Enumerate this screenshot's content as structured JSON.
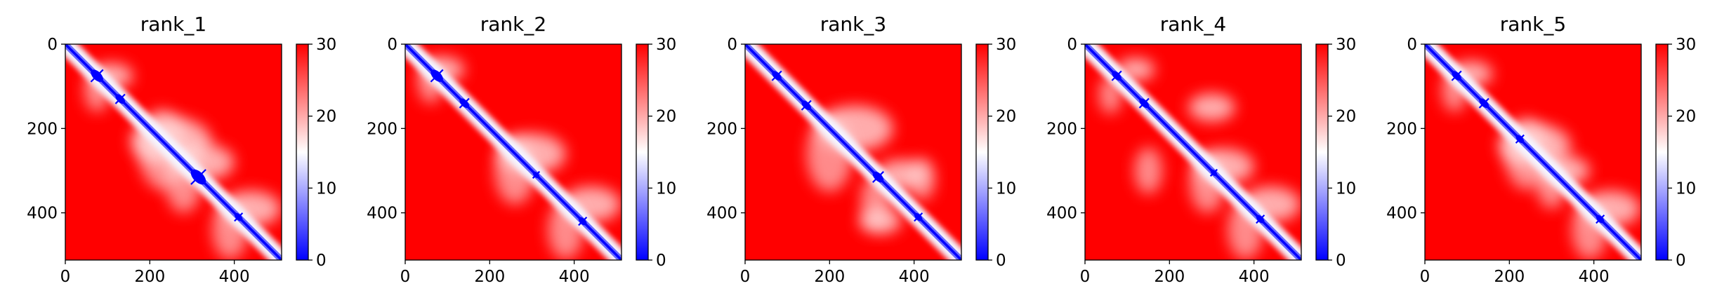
{
  "colors": {
    "low": "#0000ff",
    "mid": "#ffffff",
    "high": "#ff0000",
    "axis": "#000000"
  },
  "chart_data": [
    {
      "type": "heatmap",
      "title": "rank_1",
      "size": 512,
      "x_ticks": [
        "0",
        "200",
        "400"
      ],
      "y_ticks": [
        "0",
        "200",
        "400"
      ],
      "colorbar": {
        "min": 0,
        "max": 30,
        "ticks": [
          "0",
          "10",
          "20",
          "30"
        ]
      },
      "blue_spots": [
        {
          "x": 75,
          "y": 75,
          "r": 18
        },
        {
          "x": 315,
          "y": 315,
          "r": 22
        },
        {
          "x": 130,
          "y": 130,
          "r": 14
        },
        {
          "x": 410,
          "y": 410,
          "r": 12
        }
      ],
      "white_regions": [
        {
          "x": 110,
          "y": 75,
          "r": 50
        },
        {
          "x": 250,
          "y": 230,
          "r": 95
        },
        {
          "x": 330,
          "y": 280,
          "r": 70
        },
        {
          "x": 440,
          "y": 390,
          "r": 70
        }
      ]
    },
    {
      "type": "heatmap",
      "title": "rank_2",
      "size": 512,
      "x_ticks": [
        "0",
        "200",
        "400"
      ],
      "y_ticks": [
        "0",
        "200",
        "400"
      ],
      "colorbar": {
        "min": 0,
        "max": 30,
        "ticks": [
          "0",
          "10",
          "20",
          "30"
        ]
      },
      "blue_spots": [
        {
          "x": 75,
          "y": 75,
          "r": 18
        },
        {
          "x": 140,
          "y": 140,
          "r": 14
        },
        {
          "x": 310,
          "y": 310,
          "r": 10
        },
        {
          "x": 420,
          "y": 420,
          "r": 12
        }
      ],
      "white_regions": [
        {
          "x": 90,
          "y": 60,
          "r": 50
        },
        {
          "x": 300,
          "y": 260,
          "r": 80
        },
        {
          "x": 440,
          "y": 380,
          "r": 70
        }
      ]
    },
    {
      "type": "heatmap",
      "title": "rank_3",
      "size": 512,
      "x_ticks": [
        "0",
        "200",
        "400"
      ],
      "y_ticks": [
        "0",
        "200",
        "400"
      ],
      "colorbar": {
        "min": 0,
        "max": 30,
        "ticks": [
          "0",
          "10",
          "20",
          "30"
        ]
      },
      "blue_spots": [
        {
          "x": 75,
          "y": 75,
          "r": 14
        },
        {
          "x": 145,
          "y": 145,
          "r": 14
        },
        {
          "x": 315,
          "y": 315,
          "r": 16
        },
        {
          "x": 410,
          "y": 410,
          "r": 12
        }
      ],
      "white_regions": [
        {
          "x": 260,
          "y": 200,
          "r": 90
        },
        {
          "x": 370,
          "y": 310,
          "r": 60
        },
        {
          "x": 320,
          "y": 420,
          "r": 50
        }
      ]
    },
    {
      "type": "heatmap",
      "title": "rank_4",
      "size": 512,
      "x_ticks": [
        "0",
        "200",
        "400"
      ],
      "y_ticks": [
        "0",
        "200",
        "400"
      ],
      "colorbar": {
        "min": 0,
        "max": 30,
        "ticks": [
          "0",
          "10",
          "20",
          "30"
        ]
      },
      "blue_spots": [
        {
          "x": 75,
          "y": 75,
          "r": 14
        },
        {
          "x": 140,
          "y": 140,
          "r": 14
        },
        {
          "x": 305,
          "y": 305,
          "r": 10
        },
        {
          "x": 415,
          "y": 415,
          "r": 12
        }
      ],
      "white_regions": [
        {
          "x": 120,
          "y": 60,
          "r": 45
        },
        {
          "x": 300,
          "y": 150,
          "r": 55
        },
        {
          "x": 330,
          "y": 290,
          "r": 70
        },
        {
          "x": 440,
          "y": 380,
          "r": 70
        }
      ]
    },
    {
      "type": "heatmap",
      "title": "rank_5",
      "size": 512,
      "x_ticks": [
        "0",
        "200",
        "400"
      ],
      "y_ticks": [
        "0",
        "200",
        "400"
      ],
      "colorbar": {
        "min": 0,
        "max": 30,
        "ticks": [
          "0",
          "10",
          "20",
          "30"
        ]
      },
      "blue_spots": [
        {
          "x": 75,
          "y": 75,
          "r": 14
        },
        {
          "x": 140,
          "y": 140,
          "r": 14
        },
        {
          "x": 225,
          "y": 225,
          "r": 12
        },
        {
          "x": 415,
          "y": 415,
          "r": 12
        }
      ],
      "white_regions": [
        {
          "x": 110,
          "y": 70,
          "r": 50
        },
        {
          "x": 260,
          "y": 240,
          "r": 85
        },
        {
          "x": 330,
          "y": 300,
          "r": 60
        },
        {
          "x": 440,
          "y": 390,
          "r": 70
        }
      ]
    }
  ]
}
